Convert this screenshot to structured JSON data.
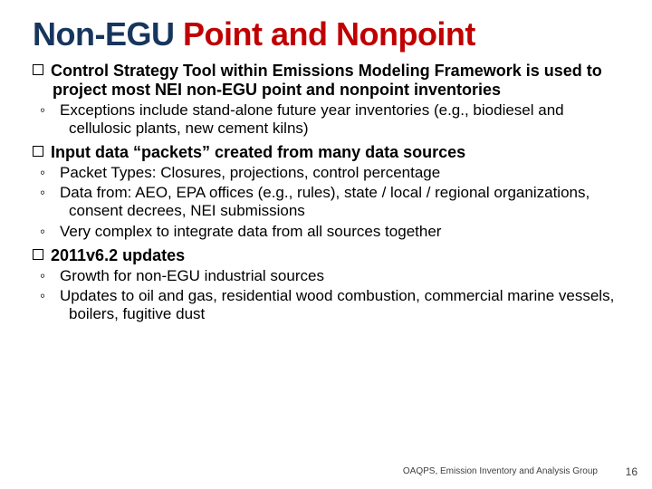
{
  "title": {
    "part_navy": "Non-EGU ",
    "part_red": "Point and Nonpoint",
    "color_navy": "#17365d",
    "color_red": "#c00000",
    "fontsize": 36
  },
  "body_fontsize": 18,
  "sub_fontsize": 17,
  "bullets": [
    {
      "level": 1,
      "text": "Control Strategy Tool within Emissions Modeling Framework is used to project most NEI non-EGU point and nonpoint inventories"
    },
    {
      "level": 2,
      "text": "Exceptions include stand-alone future year inventories (e.g., biodiesel and cellulosic plants, new cement kilns)"
    },
    {
      "level": 1,
      "text": "Input data “packets” created from many data sources"
    },
    {
      "level": 2,
      "text": "Packet Types: Closures, projections, control percentage"
    },
    {
      "level": 2,
      "text": "Data from: AEO, EPA offices (e.g., rules), state / local / regional organizations, consent decrees, NEI submissions"
    },
    {
      "level": 2,
      "text": "Very complex to integrate data from all sources together"
    },
    {
      "level": 1,
      "text": "2011v6.2 updates"
    },
    {
      "level": 2,
      "text": "Growth for non-EGU industrial sources"
    },
    {
      "level": 2,
      "text": "Updates to oil and gas, residential wood combustion, commercial marine vessels, boilers, fugitive dust"
    }
  ],
  "footer": "OAQPS, Emission Inventory and Analysis Group",
  "page_number": "16",
  "colors": {
    "background": "#ffffff",
    "text": "#000000",
    "footer": "#404040"
  }
}
